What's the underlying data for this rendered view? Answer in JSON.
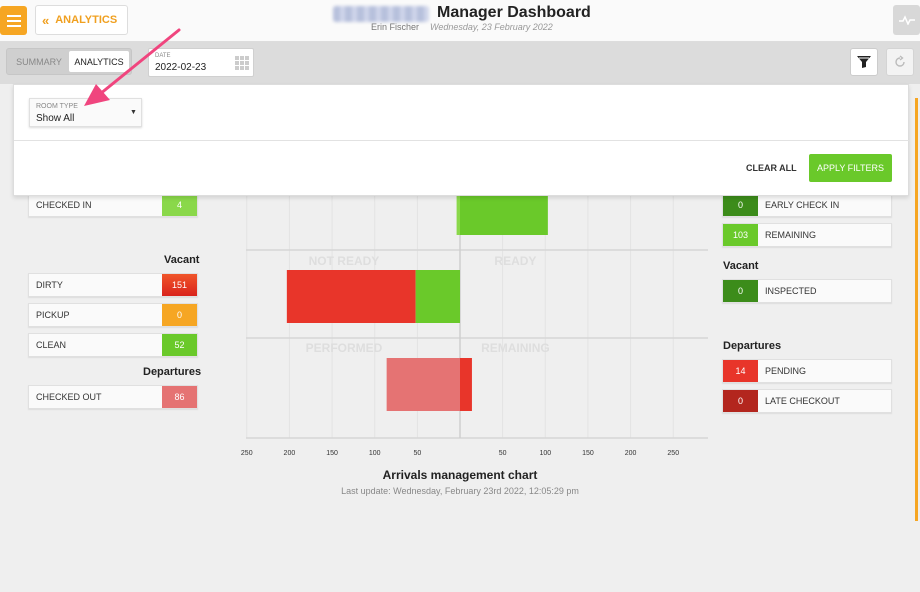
{
  "header": {
    "back_label": "ANALYTICS",
    "title": "Manager Dashboard",
    "user": "Erin Fischer",
    "date": "Wednesday, 23 February 2022"
  },
  "tabs": [
    {
      "label": "SUMMARY",
      "active": false
    },
    {
      "label": "ANALYTICS",
      "active": true
    }
  ],
  "date_filter": {
    "label": "DATE",
    "value": "2022-02-23"
  },
  "filters": {
    "room_type_label": "ROOM TYPE",
    "room_type_value": "Show All",
    "clear_label": "CLEAR ALL",
    "apply_label": "APPLY FILTERS"
  },
  "left_panel": {
    "checked_in": {
      "label": "CHECKED IN",
      "value": "4"
    },
    "vacant_title": "Vacant",
    "vacant": [
      {
        "label": "DIRTY",
        "value": "151",
        "color": "#e8352a"
      },
      {
        "label": "PICKUP",
        "value": "0",
        "color": "#f6a623"
      },
      {
        "label": "CLEAN",
        "value": "52",
        "color": "#6ac92a"
      }
    ],
    "departures_title": "Departures",
    "checked_out": {
      "label": "CHECKED OUT",
      "value": "86"
    }
  },
  "right_panel": {
    "arrivals": [
      {
        "label": "EARLY CHECK IN",
        "value": "0",
        "color": "#3c8c1a"
      },
      {
        "label": "REMAINING",
        "value": "103",
        "color": "#6ac92a"
      }
    ],
    "vacant_title": "Vacant",
    "vacant": [
      {
        "label": "INSPECTED",
        "value": "0",
        "color": "#3c8c1a"
      }
    ],
    "departures_title": "Departures",
    "departures": [
      {
        "label": "PENDING",
        "value": "14",
        "color": "#e8352a"
      },
      {
        "label": "LATE CHECKOUT",
        "value": "0",
        "color": "#b3261e"
      }
    ]
  },
  "chart": {
    "title": "Arrivals management chart",
    "last_update": "Last update: Wednesday, February 23rd 2022, 12:05:29 pm"
  },
  "chart_data": {
    "type": "bar",
    "orientation": "horizontal-diverging",
    "x_ticks": [
      "250",
      "200",
      "150",
      "100",
      "50",
      "",
      "50",
      "100",
      "150",
      "200",
      "250"
    ],
    "xlim": [
      -250,
      250
    ],
    "groups": [
      {
        "left_label": "",
        "right_label": "",
        "bars": [
          {
            "value": -4,
            "color": "#8ad84a"
          },
          {
            "value": 103,
            "color": "#6ac92a"
          }
        ]
      },
      {
        "left_label": "NOT READY",
        "right_label": "READY",
        "bars": [
          {
            "start": -203,
            "end": -52,
            "color": "#e8352a"
          },
          {
            "start": -52,
            "end": 0,
            "color": "#6ac92a"
          }
        ]
      },
      {
        "left_label": "PERFORMED",
        "right_label": "REMAINING",
        "bars": [
          {
            "start": -86,
            "end": 0,
            "color": "#e57373"
          },
          {
            "start": 0,
            "end": 14,
            "color": "#e8352a"
          }
        ]
      }
    ]
  }
}
